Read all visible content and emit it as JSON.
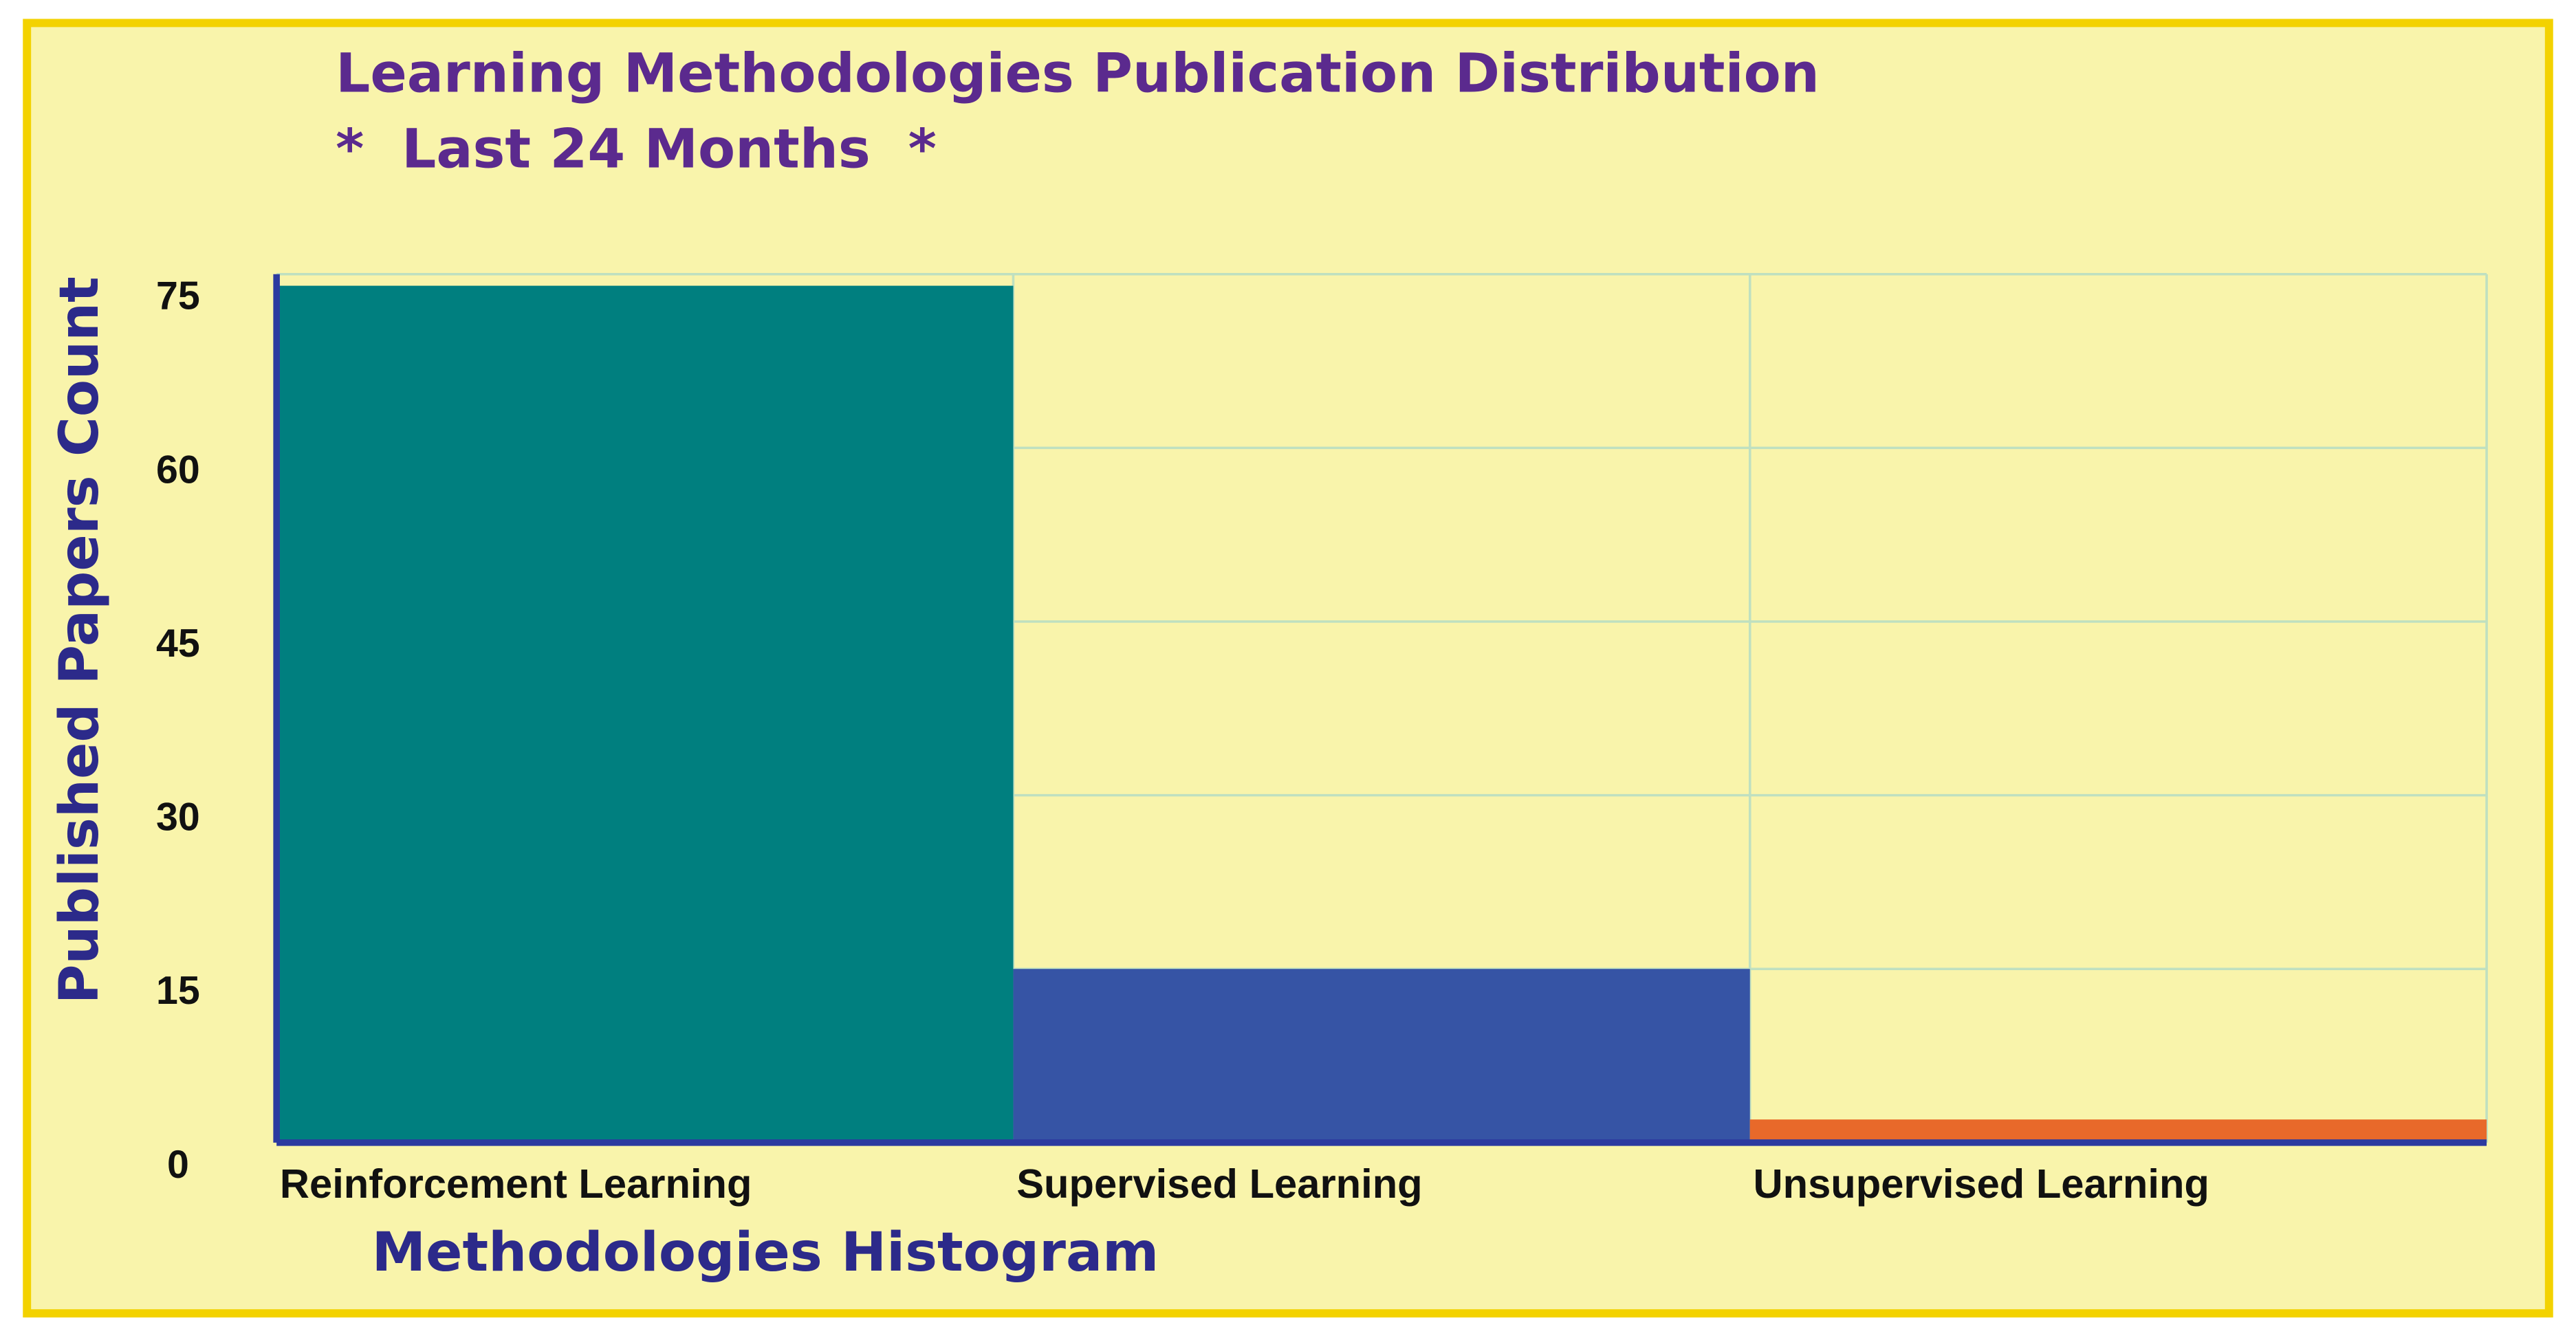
{
  "chart_data": {
    "type": "bar",
    "title": "Learning Methodologies Publication Distribution",
    "subtitle": "*  Last 24 Months  *",
    "x_label": "Methodologies Histogram",
    "y_label": "Published Papers Count",
    "categories": [
      "Reinforcement Learning",
      "Supervised Learning",
      "Unsupervised Learning"
    ],
    "values": [
      74,
      15,
      2
    ],
    "colors": [
      "#007f7f",
      "#3654a5",
      "#e8692a"
    ],
    "ylim": [
      0,
      75
    ],
    "yticks": [
      0,
      15,
      30,
      45,
      60,
      75
    ],
    "grid": true
  }
}
